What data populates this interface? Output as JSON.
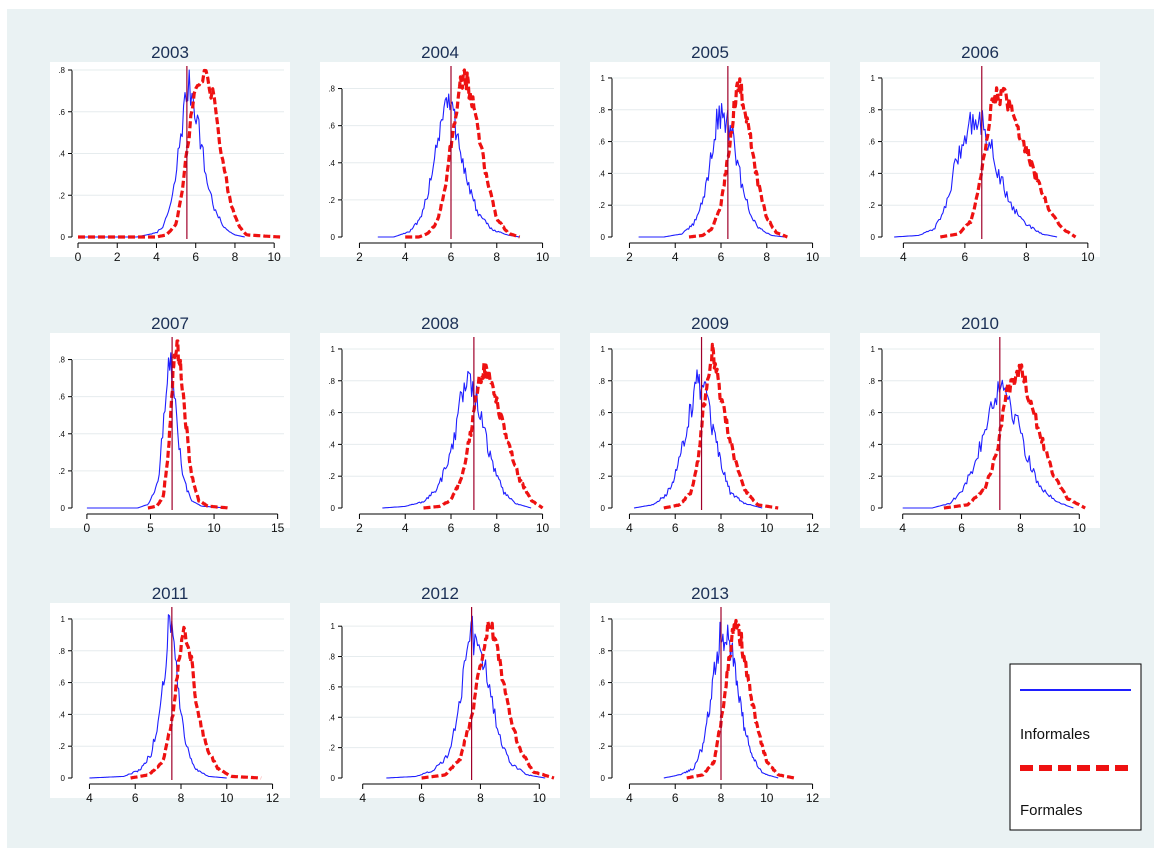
{
  "colors": {
    "background": "#eaf2f3",
    "informales": "#1f1fff",
    "formales": "#ee1111",
    "vline": "#a0002a",
    "axis": "#000000"
  },
  "legend": {
    "entries": [
      {
        "label": "Informales",
        "color": "#1f1fff",
        "style": "solid"
      },
      {
        "label": "Formales",
        "color": "#ee1111",
        "style": "dashed"
      }
    ],
    "placement": "bottom-right"
  },
  "chart_data": [
    {
      "type": "line",
      "title": "2003",
      "xlim": [
        0,
        10.5
      ],
      "ylim": [
        0,
        0.8
      ],
      "xticks": [
        0,
        2,
        4,
        6,
        8,
        10
      ],
      "yticks": [
        0,
        0.2,
        0.4,
        0.6,
        0.8
      ],
      "ytick_labels": [
        "0",
        ".2",
        ".4",
        ".6",
        ".8"
      ],
      "vline": 5.55,
      "ragged": true,
      "series": [
        {
          "name": "Informales",
          "x": [
            0,
            3,
            4,
            4.4,
            4.8,
            5.0,
            5.2,
            5.4,
            5.6,
            5.8,
            6.0,
            6.2,
            6.5,
            7,
            7.5,
            8,
            8.5
          ],
          "y": [
            0,
            0,
            0.02,
            0.06,
            0.18,
            0.3,
            0.47,
            0.6,
            0.72,
            0.7,
            0.62,
            0.5,
            0.3,
            0.12,
            0.04,
            0.01,
            0
          ]
        },
        {
          "name": "Formales",
          "x": [
            0,
            4,
            4.5,
            5.0,
            5.3,
            5.6,
            5.9,
            6.2,
            6.5,
            6.8,
            7.1,
            7.4,
            7.8,
            8.2,
            8.6,
            10.3
          ],
          "y": [
            0,
            0,
            0.01,
            0.06,
            0.2,
            0.45,
            0.65,
            0.75,
            0.77,
            0.7,
            0.55,
            0.35,
            0.15,
            0.05,
            0.01,
            0
          ]
        }
      ]
    },
    {
      "type": "line",
      "title": "2004",
      "xlim": [
        1.5,
        10.5
      ],
      "ylim": [
        0,
        0.9
      ],
      "xticks": [
        2,
        4,
        6,
        8,
        10
      ],
      "yticks": [
        0,
        0.2,
        0.4,
        0.6,
        0.8
      ],
      "ytick_labels": [
        "0",
        ".2",
        ".4",
        ".6",
        ".8"
      ],
      "vline": 6.0,
      "ragged": true,
      "series": [
        {
          "name": "Informales",
          "x": [
            2.8,
            3.5,
            4.2,
            4.7,
            5.0,
            5.3,
            5.6,
            5.8,
            6.0,
            6.3,
            6.7,
            7.2,
            7.8,
            8.5,
            9.0
          ],
          "y": [
            0,
            0,
            0.03,
            0.1,
            0.25,
            0.45,
            0.65,
            0.72,
            0.7,
            0.55,
            0.3,
            0.12,
            0.04,
            0.01,
            0
          ]
        },
        {
          "name": "Formales",
          "x": [
            4.0,
            4.6,
            5.0,
            5.4,
            5.8,
            6.1,
            6.4,
            6.6,
            6.9,
            7.2,
            7.6,
            8.0,
            8.5,
            9.0
          ],
          "y": [
            0,
            0,
            0.02,
            0.08,
            0.3,
            0.6,
            0.82,
            0.88,
            0.75,
            0.55,
            0.3,
            0.1,
            0.02,
            0
          ]
        }
      ]
    },
    {
      "type": "line",
      "title": "2005",
      "xlim": [
        1.5,
        10.5
      ],
      "ylim": [
        0,
        1.05
      ],
      "xticks": [
        2,
        4,
        6,
        8,
        10
      ],
      "yticks": [
        0,
        0.2,
        0.4,
        0.6,
        0.8,
        1
      ],
      "ytick_labels": [
        "0",
        ".2",
        ".4",
        ".6",
        ".8",
        "1"
      ],
      "vline": 6.3,
      "ragged": true,
      "series": [
        {
          "name": "Informales",
          "x": [
            2.4,
            3.5,
            4.3,
            4.8,
            5.2,
            5.5,
            5.8,
            6.0,
            6.2,
            6.5,
            6.8,
            7.2,
            7.6,
            8.2,
            8.8
          ],
          "y": [
            0,
            0,
            0.02,
            0.08,
            0.22,
            0.45,
            0.7,
            0.78,
            0.76,
            0.62,
            0.4,
            0.18,
            0.06,
            0.01,
            0
          ]
        },
        {
          "name": "Formales",
          "x": [
            4.6,
            5.2,
            5.6,
            6.0,
            6.3,
            6.6,
            6.8,
            7.0,
            7.3,
            7.6,
            8.0,
            8.4,
            8.9
          ],
          "y": [
            0,
            0.01,
            0.05,
            0.2,
            0.5,
            0.85,
            0.95,
            0.85,
            0.6,
            0.35,
            0.12,
            0.03,
            0
          ]
        }
      ]
    },
    {
      "type": "line",
      "title": "2006",
      "xlim": [
        3.5,
        10.2
      ],
      "ylim": [
        0,
        1.05
      ],
      "xticks": [
        4,
        6,
        8,
        10
      ],
      "yticks": [
        0,
        0.2,
        0.4,
        0.6,
        0.8,
        1
      ],
      "ytick_labels": [
        "0",
        ".2",
        ".4",
        ".6",
        ".8",
        "1"
      ],
      "vline": 6.55,
      "ragged": true,
      "series": [
        {
          "name": "Informales",
          "x": [
            3.7,
            4.5,
            5.0,
            5.4,
            5.7,
            6.0,
            6.2,
            6.5,
            6.8,
            7.1,
            7.5,
            8.0,
            8.5,
            9.0
          ],
          "y": [
            0,
            0.01,
            0.05,
            0.2,
            0.45,
            0.65,
            0.72,
            0.75,
            0.6,
            0.4,
            0.2,
            0.08,
            0.02,
            0
          ]
        },
        {
          "name": "Formales",
          "x": [
            5.2,
            5.8,
            6.2,
            6.5,
            6.8,
            7.0,
            7.3,
            7.6,
            8.0,
            8.4,
            8.8,
            9.2,
            9.6
          ],
          "y": [
            0,
            0.02,
            0.1,
            0.35,
            0.75,
            0.9,
            0.88,
            0.75,
            0.55,
            0.33,
            0.15,
            0.05,
            0
          ]
        }
      ]
    },
    {
      "type": "line",
      "title": "2007",
      "xlim": [
        -0.7,
        15.5
      ],
      "ylim": [
        0,
        0.9
      ],
      "xticks": [
        0,
        5,
        10,
        15
      ],
      "yticks": [
        0,
        0.2,
        0.4,
        0.6,
        0.8
      ],
      "ytick_labels": [
        "0",
        ".2",
        ".4",
        ".6",
        ".8"
      ],
      "vline": 6.7,
      "ragged": true,
      "series": [
        {
          "name": "Informales",
          "x": [
            0,
            4,
            4.8,
            5.3,
            5.7,
            6.0,
            6.3,
            6.6,
            6.9,
            7.2,
            7.6,
            8.2,
            9.0,
            11.0
          ],
          "y": [
            0,
            0,
            0.02,
            0.08,
            0.2,
            0.45,
            0.7,
            0.76,
            0.6,
            0.35,
            0.15,
            0.04,
            0.01,
            0
          ]
        },
        {
          "name": "Formales",
          "x": [
            4.8,
            5.5,
            6.0,
            6.4,
            6.8,
            7.1,
            7.4,
            7.8,
            8.2,
            8.8,
            9.5,
            11.2
          ],
          "y": [
            0,
            0.01,
            0.06,
            0.3,
            0.75,
            0.86,
            0.75,
            0.45,
            0.18,
            0.04,
            0.01,
            0
          ]
        }
      ]
    },
    {
      "type": "line",
      "title": "2008",
      "xlim": [
        1.5,
        10.5
      ],
      "ylim": [
        0,
        1.05
      ],
      "xticks": [
        2,
        4,
        6,
        8,
        10
      ],
      "yticks": [
        0,
        0.2,
        0.4,
        0.6,
        0.8,
        1
      ],
      "ytick_labels": [
        "0",
        ".2",
        ".4",
        ".6",
        ".8",
        "1"
      ],
      "vline": 7.0,
      "ragged": true,
      "series": [
        {
          "name": "Informales",
          "x": [
            3.0,
            4.0,
            4.8,
            5.4,
            5.9,
            6.2,
            6.5,
            6.8,
            7.1,
            7.4,
            7.8,
            8.3,
            8.8,
            9.5
          ],
          "y": [
            0,
            0.01,
            0.04,
            0.12,
            0.3,
            0.5,
            0.72,
            0.8,
            0.7,
            0.5,
            0.28,
            0.1,
            0.03,
            0
          ]
        },
        {
          "name": "Formales",
          "x": [
            4.8,
            5.5,
            6.0,
            6.5,
            6.9,
            7.2,
            7.5,
            7.8,
            8.1,
            8.5,
            9.0,
            9.5,
            10.0
          ],
          "y": [
            0,
            0.01,
            0.05,
            0.2,
            0.5,
            0.8,
            0.88,
            0.8,
            0.6,
            0.4,
            0.18,
            0.05,
            0
          ]
        }
      ]
    },
    {
      "type": "line",
      "title": "2009",
      "xlim": [
        3.5,
        12.5
      ],
      "ylim": [
        0,
        1.05
      ],
      "xticks": [
        4,
        6,
        8,
        10,
        12
      ],
      "yticks": [
        0,
        0.2,
        0.4,
        0.6,
        0.8,
        1
      ],
      "ytick_labels": [
        "0",
        ".2",
        ".4",
        ".6",
        ".8",
        "1"
      ],
      "vline": 7.15,
      "ragged": true,
      "series": [
        {
          "name": "Informales",
          "x": [
            4.2,
            5.0,
            5.6,
            6.0,
            6.4,
            6.8,
            7.0,
            7.3,
            7.6,
            8.0,
            8.4,
            9.0,
            9.8
          ],
          "y": [
            0,
            0.02,
            0.08,
            0.2,
            0.45,
            0.7,
            0.8,
            0.72,
            0.5,
            0.28,
            0.1,
            0.03,
            0
          ]
        },
        {
          "name": "Formales",
          "x": [
            5.5,
            6.2,
            6.7,
            7.0,
            7.3,
            7.6,
            7.9,
            8.2,
            8.6,
            9.0,
            9.6,
            10.5
          ],
          "y": [
            0,
            0.02,
            0.1,
            0.3,
            0.7,
            1.0,
            0.78,
            0.55,
            0.3,
            0.12,
            0.02,
            0
          ]
        }
      ]
    },
    {
      "type": "line",
      "title": "2010",
      "xlim": [
        3.5,
        10.5
      ],
      "ylim": [
        0,
        1.05
      ],
      "xticks": [
        4,
        6,
        8,
        10
      ],
      "yticks": [
        0,
        0.2,
        0.4,
        0.6,
        0.8,
        1
      ],
      "ytick_labels": [
        "0",
        ".2",
        ".4",
        ".6",
        ".8",
        "1"
      ],
      "vline": 7.3,
      "ragged": true,
      "series": [
        {
          "name": "Informales",
          "x": [
            4.0,
            5.0,
            5.6,
            6.0,
            6.4,
            6.8,
            7.1,
            7.4,
            7.8,
            8.2,
            8.6,
            9.2,
            9.8
          ],
          "y": [
            0,
            0,
            0.03,
            0.1,
            0.25,
            0.5,
            0.72,
            0.78,
            0.6,
            0.35,
            0.15,
            0.04,
            0
          ]
        },
        {
          "name": "Formales",
          "x": [
            5.4,
            6.2,
            6.8,
            7.2,
            7.5,
            7.8,
            8.0,
            8.3,
            8.7,
            9.1,
            9.6,
            10.2
          ],
          "y": [
            0,
            0.02,
            0.12,
            0.35,
            0.7,
            0.8,
            0.92,
            0.7,
            0.45,
            0.22,
            0.06,
            0
          ]
        }
      ]
    },
    {
      "type": "line",
      "title": "2011",
      "xlim": [
        3.5,
        12.5
      ],
      "ylim": [
        0,
        1.05
      ],
      "xticks": [
        4,
        6,
        8,
        10,
        12
      ],
      "yticks": [
        0,
        0.2,
        0.4,
        0.6,
        0.8,
        1
      ],
      "ytick_labels": [
        "0",
        ".2",
        ".4",
        ".6",
        ".8",
        "1"
      ],
      "vline": 7.6,
      "ragged": true,
      "series": [
        {
          "name": "Informales",
          "x": [
            4.0,
            5.5,
            6.2,
            6.7,
            7.0,
            7.3,
            7.5,
            7.7,
            7.9,
            8.2,
            8.6,
            9.2,
            10.0
          ],
          "y": [
            0,
            0.01,
            0.05,
            0.15,
            0.35,
            0.7,
            1.03,
            0.8,
            0.5,
            0.22,
            0.06,
            0.01,
            0
          ]
        },
        {
          "name": "Formales",
          "x": [
            5.8,
            6.6,
            7.2,
            7.6,
            7.9,
            8.1,
            8.4,
            8.7,
            9.1,
            9.6,
            10.2,
            11.5
          ],
          "y": [
            0,
            0.02,
            0.1,
            0.35,
            0.75,
            0.97,
            0.8,
            0.45,
            0.2,
            0.06,
            0.01,
            0
          ]
        }
      ]
    },
    {
      "type": "line",
      "title": "2012",
      "xlim": [
        3.5,
        10.5
      ],
      "ylim": [
        0,
        1.1
      ],
      "xticks": [
        4,
        6,
        8,
        10
      ],
      "yticks": [
        0,
        0.2,
        0.4,
        0.6,
        0.8,
        1
      ],
      "ytick_labels": [
        "0",
        ".2",
        ".4",
        ".6",
        ".8",
        "1"
      ],
      "vline": 7.7,
      "ragged": true,
      "series": [
        {
          "name": "Informales",
          "x": [
            4.8,
            5.8,
            6.4,
            6.9,
            7.2,
            7.5,
            7.7,
            8.0,
            8.3,
            8.6,
            9.0,
            9.6,
            10.2
          ],
          "y": [
            0,
            0.01,
            0.05,
            0.15,
            0.4,
            0.8,
            0.95,
            0.88,
            0.6,
            0.3,
            0.1,
            0.02,
            0
          ]
        },
        {
          "name": "Formales",
          "x": [
            6.0,
            6.8,
            7.3,
            7.7,
            8.0,
            8.3,
            8.6,
            8.9,
            9.3,
            9.8,
            10.5
          ],
          "y": [
            0,
            0.02,
            0.12,
            0.4,
            0.75,
            1.03,
            0.8,
            0.5,
            0.2,
            0.04,
            0
          ]
        }
      ]
    },
    {
      "type": "line",
      "title": "2013",
      "xlim": [
        3.5,
        12.5
      ],
      "ylim": [
        0,
        1.05
      ],
      "xticks": [
        4,
        6,
        8,
        10,
        12
      ],
      "yticks": [
        0,
        0.2,
        0.4,
        0.6,
        0.8,
        1
      ],
      "ytick_labels": [
        "0",
        ".2",
        ".4",
        ".6",
        ".8",
        "1"
      ],
      "vline": 8.0,
      "ragged": true,
      "series": [
        {
          "name": "Informales",
          "x": [
            5.5,
            6.2,
            6.8,
            7.2,
            7.5,
            7.8,
            8.0,
            8.3,
            8.6,
            8.9,
            9.3,
            9.8,
            10.5
          ],
          "y": [
            0,
            0.02,
            0.06,
            0.2,
            0.45,
            0.75,
            0.9,
            0.95,
            0.7,
            0.4,
            0.15,
            0.03,
            0
          ]
        },
        {
          "name": "Formales",
          "x": [
            6.5,
            7.2,
            7.7,
            8.0,
            8.3,
            8.6,
            8.9,
            9.2,
            9.6,
            10.0,
            10.5,
            11.2
          ],
          "y": [
            0,
            0.02,
            0.1,
            0.35,
            0.7,
            0.97,
            0.85,
            0.6,
            0.3,
            0.1,
            0.02,
            0
          ]
        }
      ]
    }
  ]
}
